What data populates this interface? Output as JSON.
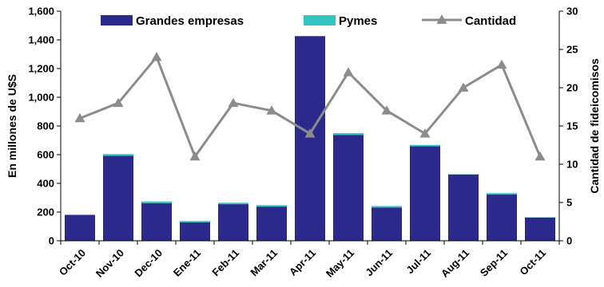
{
  "chart_data": {
    "type": "bar",
    "categories": [
      "Oct-10",
      "Nov-10",
      "Dec-10",
      "Ene-11",
      "Feb-11",
      "Mar-11",
      "Apr-11",
      "May-11",
      "Jun-11",
      "Jul-11",
      "Aug-11",
      "Sep-11",
      "Oct-11"
    ],
    "series": [
      {
        "name": "Grandes empresas",
        "type": "bar",
        "axis": "left",
        "color": "#2b2a8c",
        "values": [
          180,
          592,
          262,
          128,
          255,
          238,
          1425,
          738,
          232,
          658,
          462,
          322,
          162
        ]
      },
      {
        "name": "Pymes",
        "type": "bar",
        "axis": "left",
        "color": "#33c6c0",
        "values": [
          2,
          12,
          12,
          10,
          10,
          10,
          2,
          12,
          10,
          10,
          2,
          10,
          2
        ]
      },
      {
        "name": "Cantidad",
        "type": "line",
        "axis": "right",
        "color": "#8c8c8c",
        "marker": "triangle",
        "values": [
          16,
          18,
          24,
          11,
          18,
          17,
          14,
          22,
          17,
          14,
          20,
          23,
          11
        ]
      }
    ],
    "ylabel": "En millones de U$S",
    "y2label": "Cantidad de fideicomisos",
    "ylim": [
      0,
      1600
    ],
    "y2lim": [
      0,
      30
    ],
    "yticks": [
      "0",
      "200",
      "400",
      "600",
      "800",
      "1,000",
      "1,200",
      "1,400",
      "1,600"
    ],
    "y2ticks": [
      "0",
      "5",
      "10",
      "15",
      "20",
      "25",
      "30"
    ],
    "stacked": true,
    "grid": false,
    "legend": "top"
  }
}
